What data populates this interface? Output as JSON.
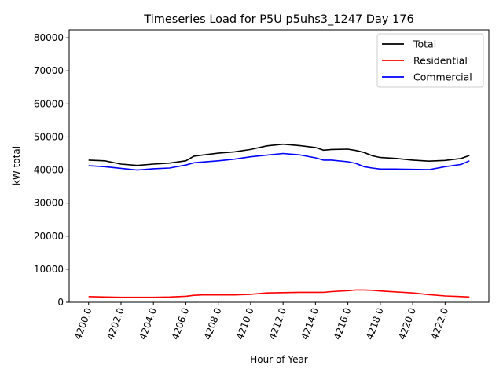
{
  "chart_data": {
    "type": "line",
    "title": "Timeseries Load for P5U p5uhs3_1247  Day 176",
    "xlabel": "Hour of Year",
    "ylabel": "kW total",
    "xlim": [
      4198.8,
      4224.7
    ],
    "ylim": [
      0,
      82400
    ],
    "grid": false,
    "legend_position": "top-right",
    "x_ticks": [
      4200,
      4202,
      4204,
      4206,
      4208,
      4210,
      4212,
      4214,
      4216,
      4218,
      4220,
      4222
    ],
    "x_tick_labels": [
      "4200.0",
      "4202.0",
      "4204.0",
      "4206.0",
      "4208.0",
      "4210.0",
      "4212.0",
      "4214.0",
      "4216.0",
      "4218.0",
      "4220.0",
      "4222.0"
    ],
    "y_ticks": [
      0,
      10000,
      20000,
      30000,
      40000,
      50000,
      60000,
      70000,
      80000
    ],
    "y_tick_labels": [
      "0",
      "10000",
      "20000",
      "30000",
      "40000",
      "50000",
      "60000",
      "70000",
      "80000"
    ],
    "x": [
      4200,
      4201,
      4202,
      4203,
      4204,
      4205,
      4206,
      4206.5,
      4207,
      4208,
      4209,
      4210,
      4211,
      4212,
      4213,
      4214,
      4214.5,
      4215,
      4216,
      4216.5,
      4217,
      4217.5,
      4218,
      4219,
      4220,
      4221,
      4222,
      4223,
      4223.5
    ],
    "series": [
      {
        "name": "Total",
        "color": "#000000",
        "values": [
          43000,
          42800,
          41800,
          41400,
          41800,
          42100,
          42800,
          44200,
          44500,
          45100,
          45500,
          46200,
          47300,
          47800,
          47400,
          46800,
          46000,
          46200,
          46300,
          45900,
          45300,
          44300,
          43800,
          43500,
          43000,
          42700,
          42900,
          43500,
          44400
        ]
      },
      {
        "name": "Residential",
        "color": "#ff0000",
        "values": [
          1700,
          1600,
          1500,
          1500,
          1500,
          1600,
          1800,
          2100,
          2200,
          2200,
          2200,
          2400,
          2800,
          2900,
          3000,
          3000,
          3000,
          3200,
          3500,
          3700,
          3700,
          3600,
          3400,
          3100,
          2800,
          2300,
          1900,
          1700,
          1600
        ]
      },
      {
        "name": "Commercial",
        "color": "#0000ff",
        "values": [
          41300,
          41000,
          40500,
          40000,
          40400,
          40600,
          41500,
          42200,
          42400,
          42800,
          43300,
          44000,
          44500,
          45000,
          44600,
          43700,
          43000,
          43000,
          42500,
          42000,
          41000,
          40600,
          40300,
          40300,
          40200,
          40100,
          41000,
          41700,
          42800
        ]
      }
    ]
  }
}
